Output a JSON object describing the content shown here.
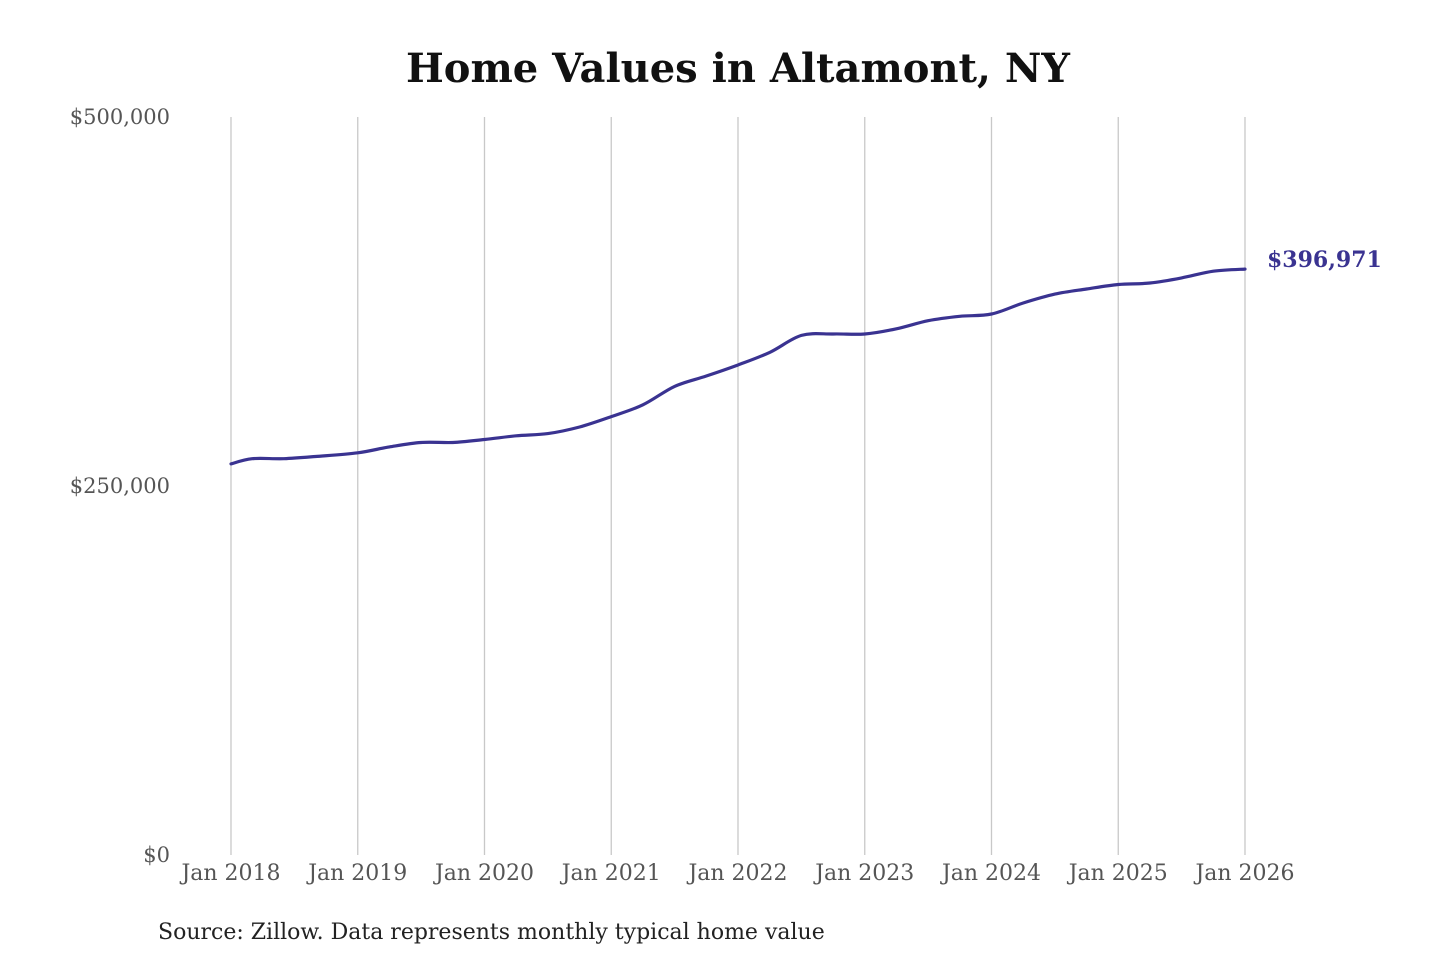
{
  "chart_data": {
    "type": "line",
    "title": "Home Values in Altamont, NY",
    "xlabel": "",
    "ylabel": "",
    "source": "Source: Zillow. Data represents monthly typical home value",
    "ylim": [
      0,
      500000
    ],
    "y_ticks": [
      {
        "value": 0,
        "label": "$0"
      },
      {
        "value": 250000,
        "label": "$250,000"
      },
      {
        "value": 500000,
        "label": "$500,000"
      }
    ],
    "x_range": [
      "2018-01",
      "2026-01"
    ],
    "x_ticks": [
      {
        "date": "2018-01",
        "label": "Jan 2018"
      },
      {
        "date": "2019-01",
        "label": "Jan 2019"
      },
      {
        "date": "2020-01",
        "label": "Jan 2020"
      },
      {
        "date": "2021-01",
        "label": "Jan 2021"
      },
      {
        "date": "2022-01",
        "label": "Jan 2022"
      },
      {
        "date": "2023-01",
        "label": "Jan 2023"
      },
      {
        "date": "2024-01",
        "label": "Jan 2024"
      },
      {
        "date": "2025-01",
        "label": "Jan 2025"
      },
      {
        "date": "2026-01",
        "label": "Jan 2026"
      }
    ],
    "grid": {
      "vertical": true,
      "horizontal": false
    },
    "legend": "none",
    "line_color": "#3a3391",
    "end_label": "$396,971",
    "series": [
      {
        "points": [
          [
            "2018-01",
            265000
          ],
          [
            "2018-03",
            268500
          ],
          [
            "2018-06",
            268500
          ],
          [
            "2018-09",
            270000
          ],
          [
            "2019-01",
            272500
          ],
          [
            "2019-04",
            276500
          ],
          [
            "2019-07",
            279500
          ],
          [
            "2019-10",
            279500
          ],
          [
            "2020-01",
            281500
          ],
          [
            "2020-04",
            284000
          ],
          [
            "2020-07",
            285500
          ],
          [
            "2020-10",
            290000
          ],
          [
            "2021-01",
            297000
          ],
          [
            "2021-04",
            305000
          ],
          [
            "2021-07",
            317500
          ],
          [
            "2021-10",
            324500
          ],
          [
            "2022-01",
            332000
          ],
          [
            "2022-04",
            340500
          ],
          [
            "2022-07",
            352000
          ],
          [
            "2022-10",
            353000
          ],
          [
            "2023-01",
            353000
          ],
          [
            "2023-04",
            356500
          ],
          [
            "2023-07",
            362000
          ],
          [
            "2023-10",
            365000
          ],
          [
            "2024-01",
            366500
          ],
          [
            "2024-04",
            374000
          ],
          [
            "2024-07",
            380000
          ],
          [
            "2024-10",
            383500
          ],
          [
            "2025-01",
            386500
          ],
          [
            "2025-04",
            387500
          ],
          [
            "2025-07",
            391000
          ],
          [
            "2025-10",
            395500
          ],
          [
            "2026-01",
            396971
          ]
        ]
      }
    ]
  }
}
